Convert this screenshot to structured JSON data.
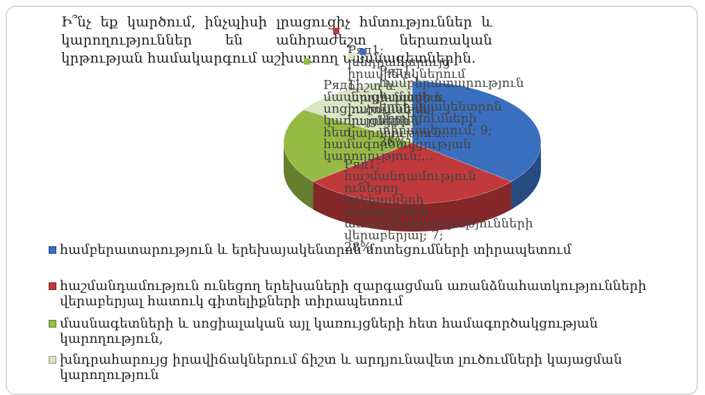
{
  "chart_data": {
    "type": "pie",
    "title": "Ի՞նչ եք կարծում, ինչպիսի լրացուցիչ հմտություններ և կարողություններ են անհրաժեշտ ներառական կրթության համակարգում աշխատող մասնագետներին.",
    "series_name": "Ряд1",
    "categories": [
      "համբերատարություն և երեխայակենտրոն մոտեցումների տիրապետում",
      "հաշմանդամություն ունեցող երեխաների զարգացման առանձնահատկությունների վերաբերյալ հատուկ գիտելիքների տիրապետում",
      "մասնագետների և սոցիալական այլ կառույցների հետ համագործակցության կարողություն,",
      "խնդրահարույց իրավիճակներում ճիշտ և արդյունավետ լուծումների կայացման կարողություն"
    ],
    "values": [
      9,
      7,
      5,
      4
    ],
    "colors": [
      "#3a6fc0",
      "#c0393b",
      "#96bb45",
      "#dbe4c4"
    ],
    "labels": [
      "Ряд1; համբերատարություն և երեխայակենտրոն մոտեցումների տիրապետում; 9; 36%",
      "Ряд1; հաշմանդամություն ունեցող երեխաների զարգացման առանձնահատկությունների վերաբերյալ; 7; 28%",
      "Ряд1; մասնագետների և սոցիալական այլ կառույցների հետ համագործակցության կարողություն;...",
      "Ряд1; խնդրահարույց իրավիճակներում ճիշտ և արդյունավետ լուծումների կայացման կարողություն;..."
    ],
    "legend_position": "bottom"
  }
}
